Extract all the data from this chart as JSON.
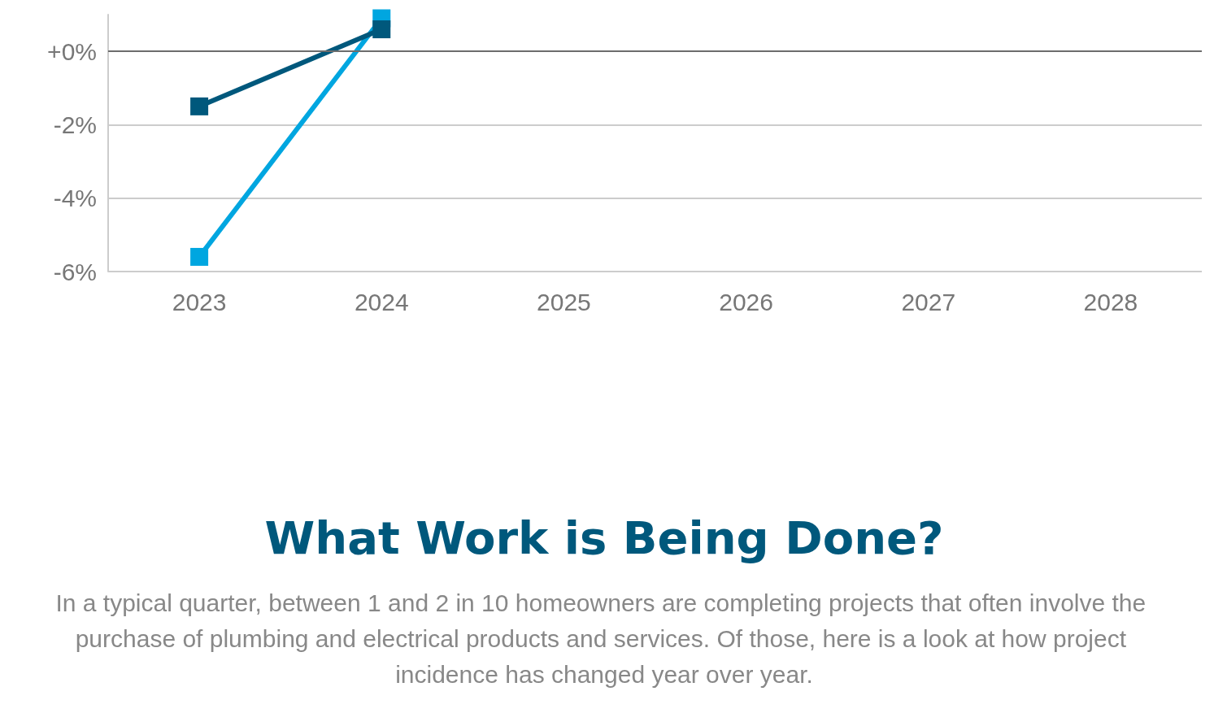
{
  "chart_data": {
    "type": "line",
    "title": "What Work is Being Done?",
    "subtitle": "In a typical quarter, between 1 and 2 in 10 homeowners are completing projects that often involve the purchase of plumbing and electrical products and services. Of those, here is a look at how project incidence has changed year over year.",
    "categories": [
      "2023",
      "2024",
      "2025",
      "2026",
      "2027",
      "2028"
    ],
    "series": [
      {
        "color": "#00a6e0",
        "values": [
          -5.6,
          0.9,
          null,
          null,
          null,
          null
        ]
      },
      {
        "color": "#00587c",
        "values": [
          -1.5,
          0.6,
          null,
          null,
          null,
          null
        ]
      }
    ],
    "ylim": [
      -6,
      1
    ],
    "yticks": [
      {
        "value": -6,
        "label": "-6%"
      },
      {
        "value": -4,
        "label": "-4%"
      },
      {
        "value": -2,
        "label": "-2%"
      },
      {
        "value": 0,
        "label": "+0%"
      }
    ],
    "ref_lines": [
      {
        "axis": "y",
        "value": 0,
        "color": "#6d6d6d"
      }
    ],
    "grid": "y",
    "marker": "square",
    "line_style": "solid"
  }
}
